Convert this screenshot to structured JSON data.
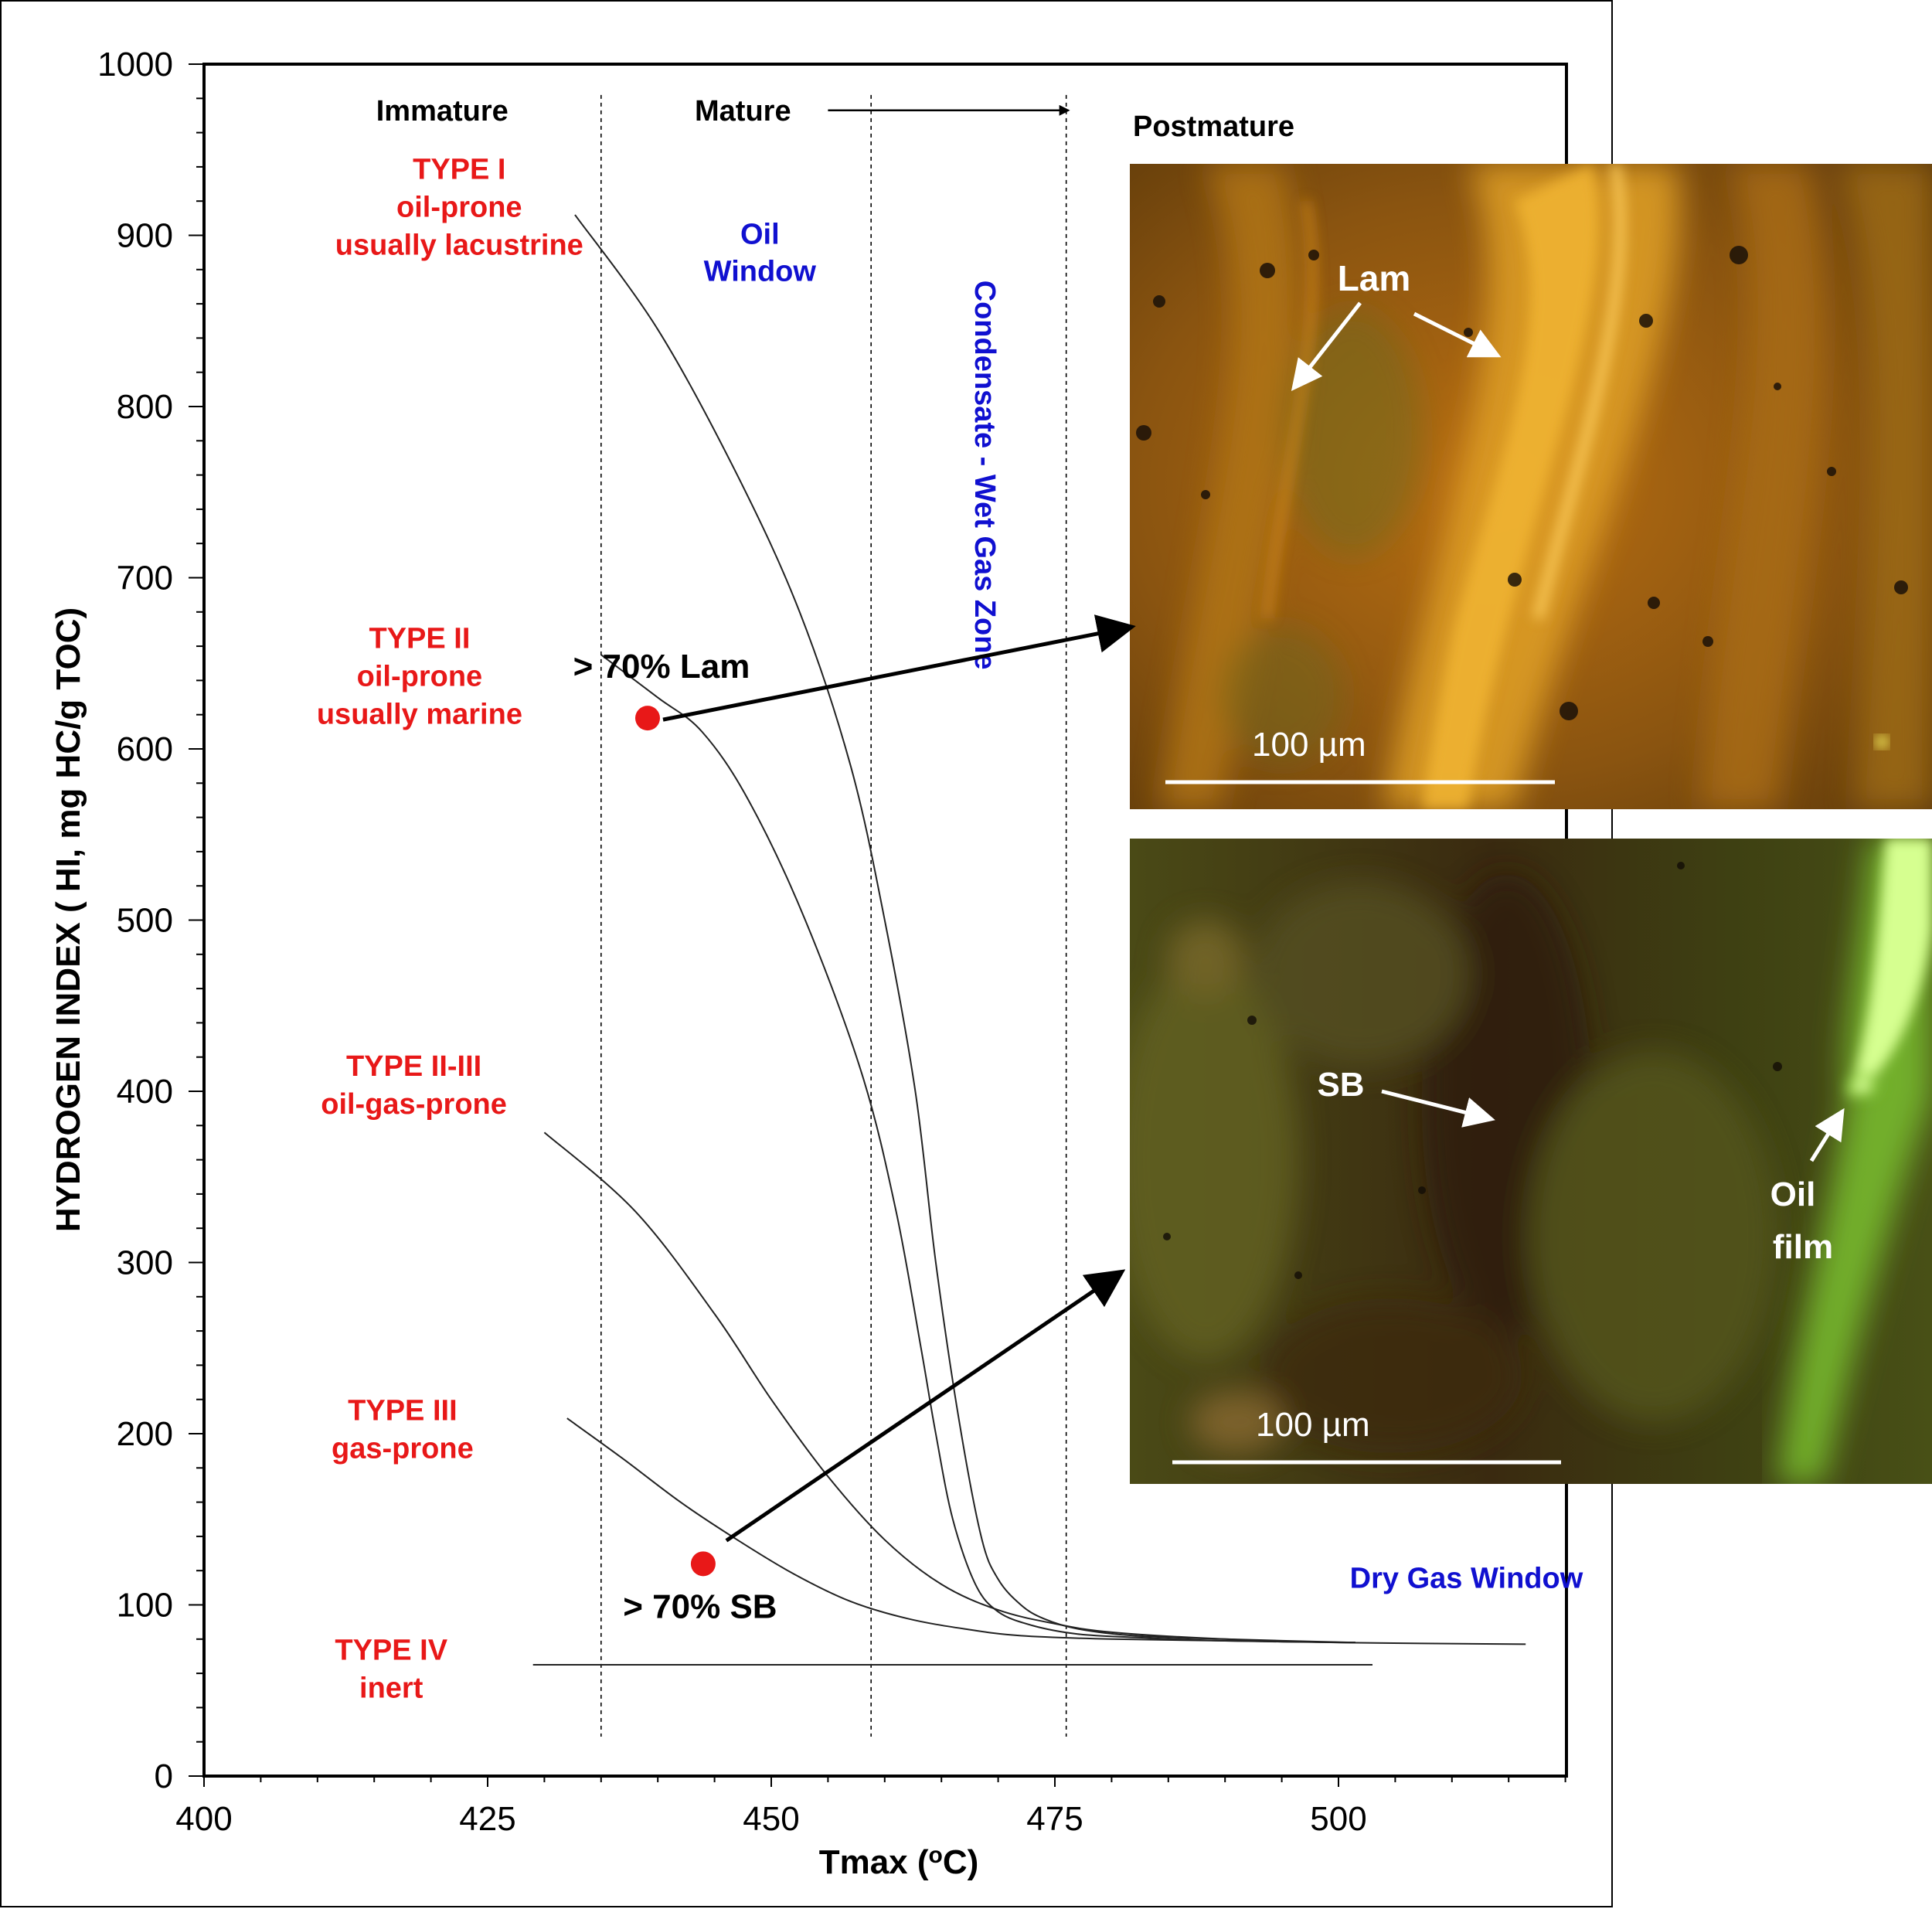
{
  "chart_data": {
    "type": "line",
    "xlabel": "Tmax (oC)",
    "ylabel": "HYDROGEN INDEX ( HI, mg HC/g TOC)",
    "xlim": [
      400,
      520
    ],
    "ylim": [
      0,
      1000
    ],
    "x_ticks": [
      "400",
      "425",
      "450",
      "475",
      "500"
    ],
    "y_ticks": [
      "0",
      "100",
      "200",
      "300",
      "400",
      "500",
      "600",
      "700",
      "800",
      "900",
      "1000"
    ],
    "maturity_boundaries": [
      435,
      458.8,
      476
    ],
    "zone_labels": [
      {
        "text": "Immature",
        "x": 421,
        "y": 967
      },
      {
        "text": "Mature",
        "x": 447.5,
        "y": 967
      },
      {
        "text": "Postmature",
        "x": 489,
        "y": 958
      }
    ],
    "window_labels": [
      {
        "lines": [
          "Oil",
          "Window"
        ],
        "x": 449,
        "y": 895
      },
      {
        "text": "Condensate - Wet Gas Zone",
        "x": 468,
        "y": 760
      },
      {
        "text": "Dry Gas Window",
        "x": 501,
        "y": 110
      }
    ],
    "kerogen_types": [
      {
        "lines": [
          "TYPE I",
          "oil-prone",
          "usually lacustrine"
        ],
        "x": 422.5,
        "y": 933
      },
      {
        "lines": [
          "TYPE II",
          "oil-prone",
          "usually marine"
        ],
        "x": 419,
        "y": 659
      },
      {
        "lines": [
          "TYPE II-III",
          "oil-gas-prone"
        ],
        "x": 418.5,
        "y": 409
      },
      {
        "lines": [
          "TYPE III",
          "gas-prone"
        ],
        "x": 417.5,
        "y": 208
      },
      {
        "lines": [
          "TYPE IV",
          "inert"
        ],
        "x": 416.5,
        "y": 68
      }
    ],
    "series": [
      {
        "x": [
          432.7,
          440,
          447,
          452.5,
          457,
          460,
          462.7,
          464.5,
          466.5,
          468.5,
          470,
          472,
          474,
          477,
          482,
          490,
          501.5
        ],
        "y": [
          912,
          845,
          760,
          680,
          590,
          500,
          400,
          300,
          210,
          140,
          115,
          100,
          92,
          86,
          82,
          80,
          78
        ]
      },
      {
        "x": [
          435,
          440,
          443.9,
          448,
          453,
          458,
          461,
          463.2,
          464.5,
          466,
          468,
          470,
          473,
          477,
          482,
          490,
          501.5
        ],
        "y": [
          655,
          630,
          610,
          570,
          500,
          410,
          330,
          250,
          200,
          150,
          112,
          96,
          88,
          83,
          81,
          79,
          78
        ]
      },
      {
        "x": [
          430,
          438,
          445,
          450,
          455,
          460,
          465,
          470,
          475,
          480,
          490,
          500,
          516.5
        ],
        "y": [
          376,
          330,
          270,
          220,
          175,
          138,
          112,
          97,
          89,
          84,
          80,
          78,
          77
        ]
      },
      {
        "x": [
          432,
          437,
          442,
          447,
          452,
          457,
          462,
          467,
          472,
          480,
          490,
          501.5
        ],
        "y": [
          209,
          185,
          160,
          138,
          118,
          102,
          92,
          86,
          82,
          80,
          79,
          78
        ]
      },
      {
        "x": [
          429,
          503
        ],
        "y": [
          65,
          65
        ]
      }
    ],
    "samples": [
      {
        "label": "> 70% Lam",
        "x": 439.1,
        "y": 618,
        "color": "#e81818"
      },
      {
        "label": "> 70% SB",
        "x": 444,
        "y": 124,
        "color": "#e81818"
      }
    ],
    "colors": {
      "kerogen_type": "#e81818",
      "window": "#1010d0",
      "sample": "#e81818"
    }
  },
  "annotation_arrow_x": 471,
  "photos": [
    {
      "name": "Lam",
      "scale_label": "100 µm",
      "labels": [
        "Lam"
      ],
      "palette": "amber fluorescence"
    },
    {
      "name": "SB",
      "scale_label": "100 µm",
      "labels": [
        "SB",
        "Oil",
        "film"
      ],
      "palette": "green fluorescence"
    }
  ]
}
